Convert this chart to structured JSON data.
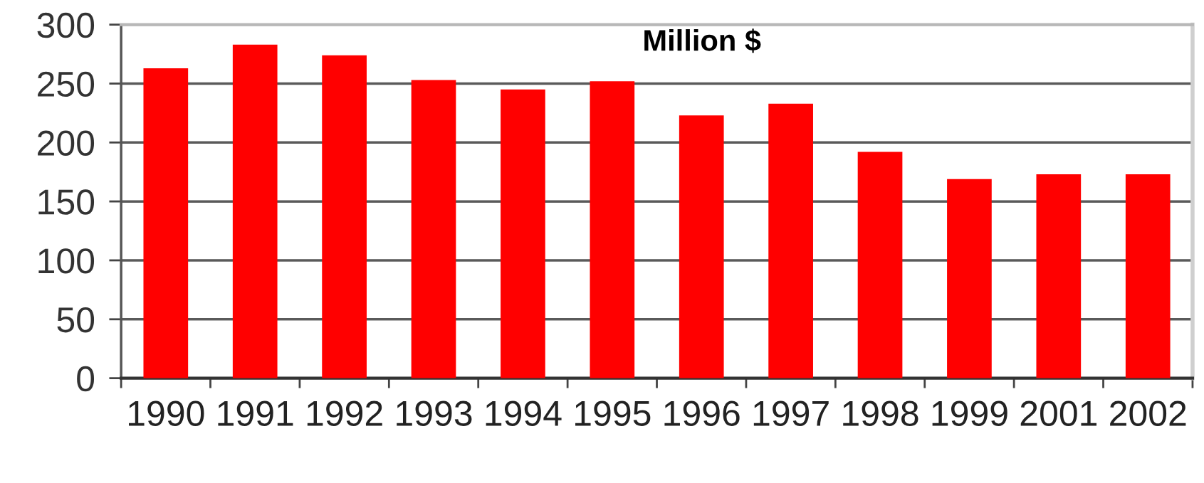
{
  "chart_data": {
    "type": "bar",
    "title": "Million $",
    "categories": [
      "1990",
      "1991",
      "1992",
      "1993",
      "1994",
      "1995",
      "1996",
      "1997",
      "1998",
      "1999",
      "2001",
      "2002"
    ],
    "values": [
      263,
      283,
      274,
      253,
      245,
      252,
      223,
      233,
      192,
      169,
      173,
      173
    ],
    "color": "#ff0000",
    "ylim": [
      0,
      300
    ],
    "yticks": [
      0,
      50,
      100,
      150,
      200,
      250,
      300
    ],
    "grid": "y"
  }
}
